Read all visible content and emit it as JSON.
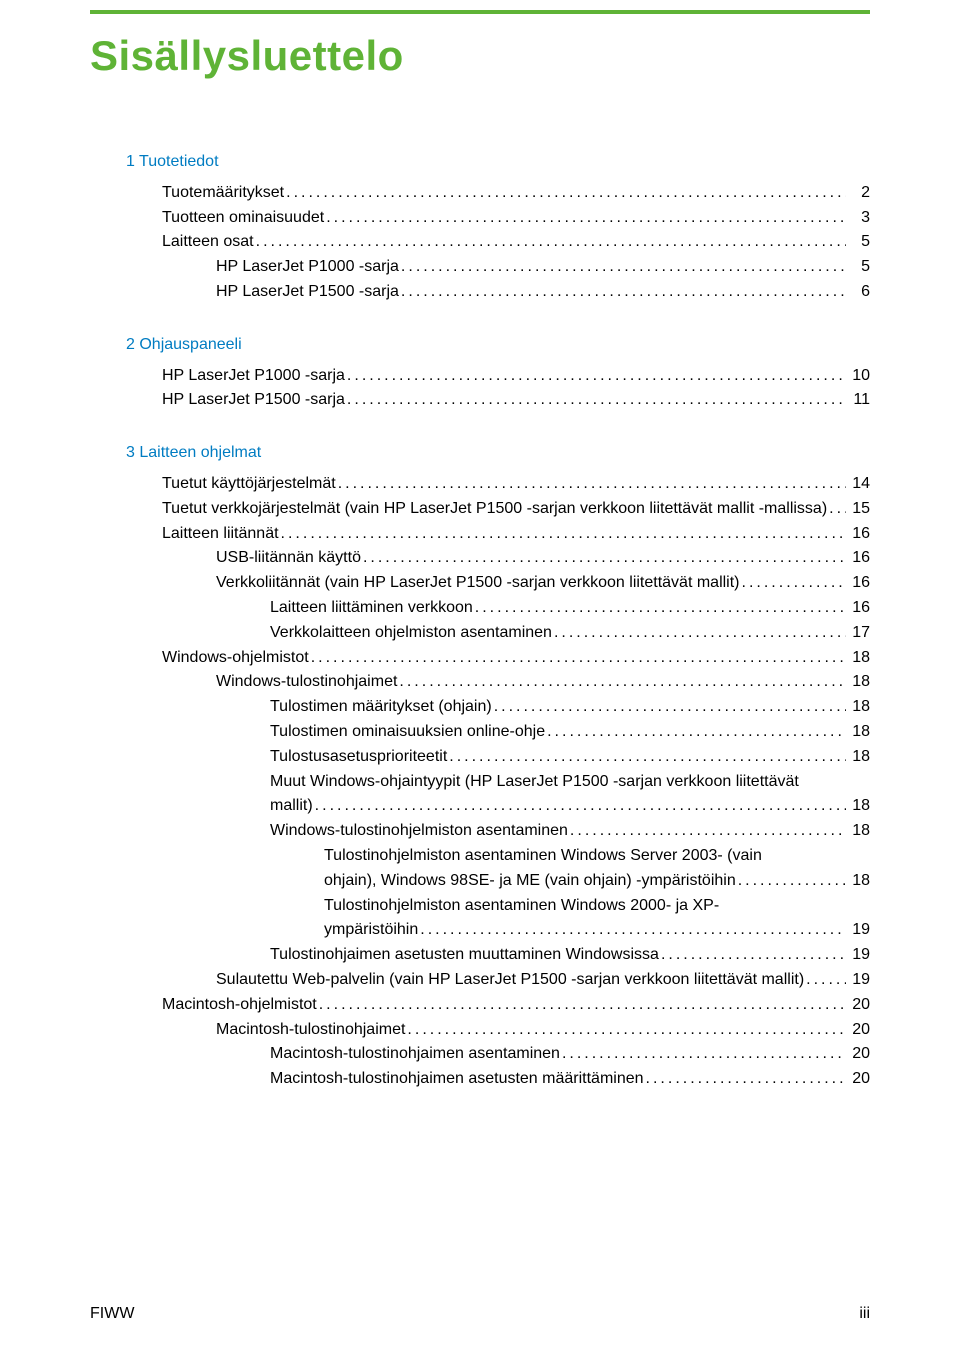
{
  "colors": {
    "rule": "#5fb336",
    "title": "#5fb336",
    "section": "#007cc2",
    "text": "#000000",
    "background": "#ffffff"
  },
  "title": "Sisällysluettelo",
  "footer": {
    "left": "FIWW",
    "right": "iii"
  },
  "sections": [
    {
      "heading": "1  Tuotetiedot",
      "entries": [
        {
          "level": 1,
          "label": "Tuotemääritykset",
          "page": "2"
        },
        {
          "level": 1,
          "label": "Tuotteen ominaisuudet",
          "page": "3"
        },
        {
          "level": 1,
          "label": "Laitteen osat",
          "page": "5"
        },
        {
          "level": 2,
          "label": "HP LaserJet P1000 -sarja",
          "page": "5"
        },
        {
          "level": 2,
          "label": "HP LaserJet P1500 -sarja",
          "page": "6"
        }
      ]
    },
    {
      "heading": "2  Ohjauspaneeli",
      "entries": [
        {
          "level": 1,
          "label": "HP LaserJet P1000 -sarja",
          "page": "10"
        },
        {
          "level": 1,
          "label": "HP LaserJet P1500 -sarja",
          "page": "11"
        }
      ]
    },
    {
      "heading": "3  Laitteen ohjelmat",
      "entries": [
        {
          "level": 1,
          "label": "Tuetut käyttöjärjestelmät",
          "page": "14"
        },
        {
          "level": 1,
          "label": "Tuetut verkkojärjestelmät (vain HP LaserJet P1500 -sarjan verkkoon liitettävät mallit -mallissa)",
          "page": "15"
        },
        {
          "level": 1,
          "label": "Laitteen liitännät",
          "page": "16"
        },
        {
          "level": 2,
          "label": "USB-liitännän käyttö",
          "page": "16"
        },
        {
          "level": 2,
          "label": "Verkkoliitännät (vain HP LaserJet P1500 -sarjan verkkoon liitettävät mallit)",
          "page": "16"
        },
        {
          "level": 3,
          "label": "Laitteen liittäminen verkkoon",
          "page": "16"
        },
        {
          "level": 3,
          "label": "Verkkolaitteen ohjelmiston asentaminen",
          "page": "17"
        },
        {
          "level": 1,
          "label": "Windows-ohjelmistot",
          "page": "18"
        },
        {
          "level": 2,
          "label": "Windows-tulostinohjaimet",
          "page": "18"
        },
        {
          "level": 3,
          "label": "Tulostimen määritykset (ohjain)",
          "page": "18"
        },
        {
          "level": 3,
          "label": "Tulostimen ominaisuuksien online-ohje",
          "page": "18"
        },
        {
          "level": 3,
          "label": "Tulostusasetusprioriteetit",
          "page": "18"
        },
        {
          "level": 3,
          "multiline": true,
          "lines": [
            "Muut Windows-ohjaintyypit (HP LaserJet P1500 -sarjan verkkoon liitettävät",
            "mallit)"
          ],
          "page": "18"
        },
        {
          "level": 3,
          "label": "Windows-tulostinohjelmiston asentaminen",
          "page": "18"
        },
        {
          "level": 4,
          "multiline": true,
          "lines": [
            "Tulostinohjelmiston asentaminen Windows Server 2003- (vain",
            "ohjain), Windows 98SE- ja ME (vain ohjain) -ympäristöihin"
          ],
          "page": "18"
        },
        {
          "level": 4,
          "multiline": true,
          "lines": [
            "Tulostinohjelmiston asentaminen Windows 2000- ja XP-",
            "ympäristöihin"
          ],
          "page": "19"
        },
        {
          "level": 3,
          "label": "Tulostinohjaimen asetusten muuttaminen Windowsissa",
          "page": "19"
        },
        {
          "level": 2,
          "label": "Sulautettu Web-palvelin (vain HP LaserJet P1500 -sarjan verkkoon liitettävät mallit)",
          "page": "19"
        },
        {
          "level": 1,
          "label": "Macintosh-ohjelmistot",
          "page": "20"
        },
        {
          "level": 2,
          "label": "Macintosh-tulostinohjaimet",
          "page": "20"
        },
        {
          "level": 3,
          "label": "Macintosh-tulostinohjaimen asentaminen",
          "page": "20"
        },
        {
          "level": 3,
          "label": "Macintosh-tulostinohjaimen asetusten määrittäminen",
          "page": "20"
        }
      ]
    }
  ]
}
